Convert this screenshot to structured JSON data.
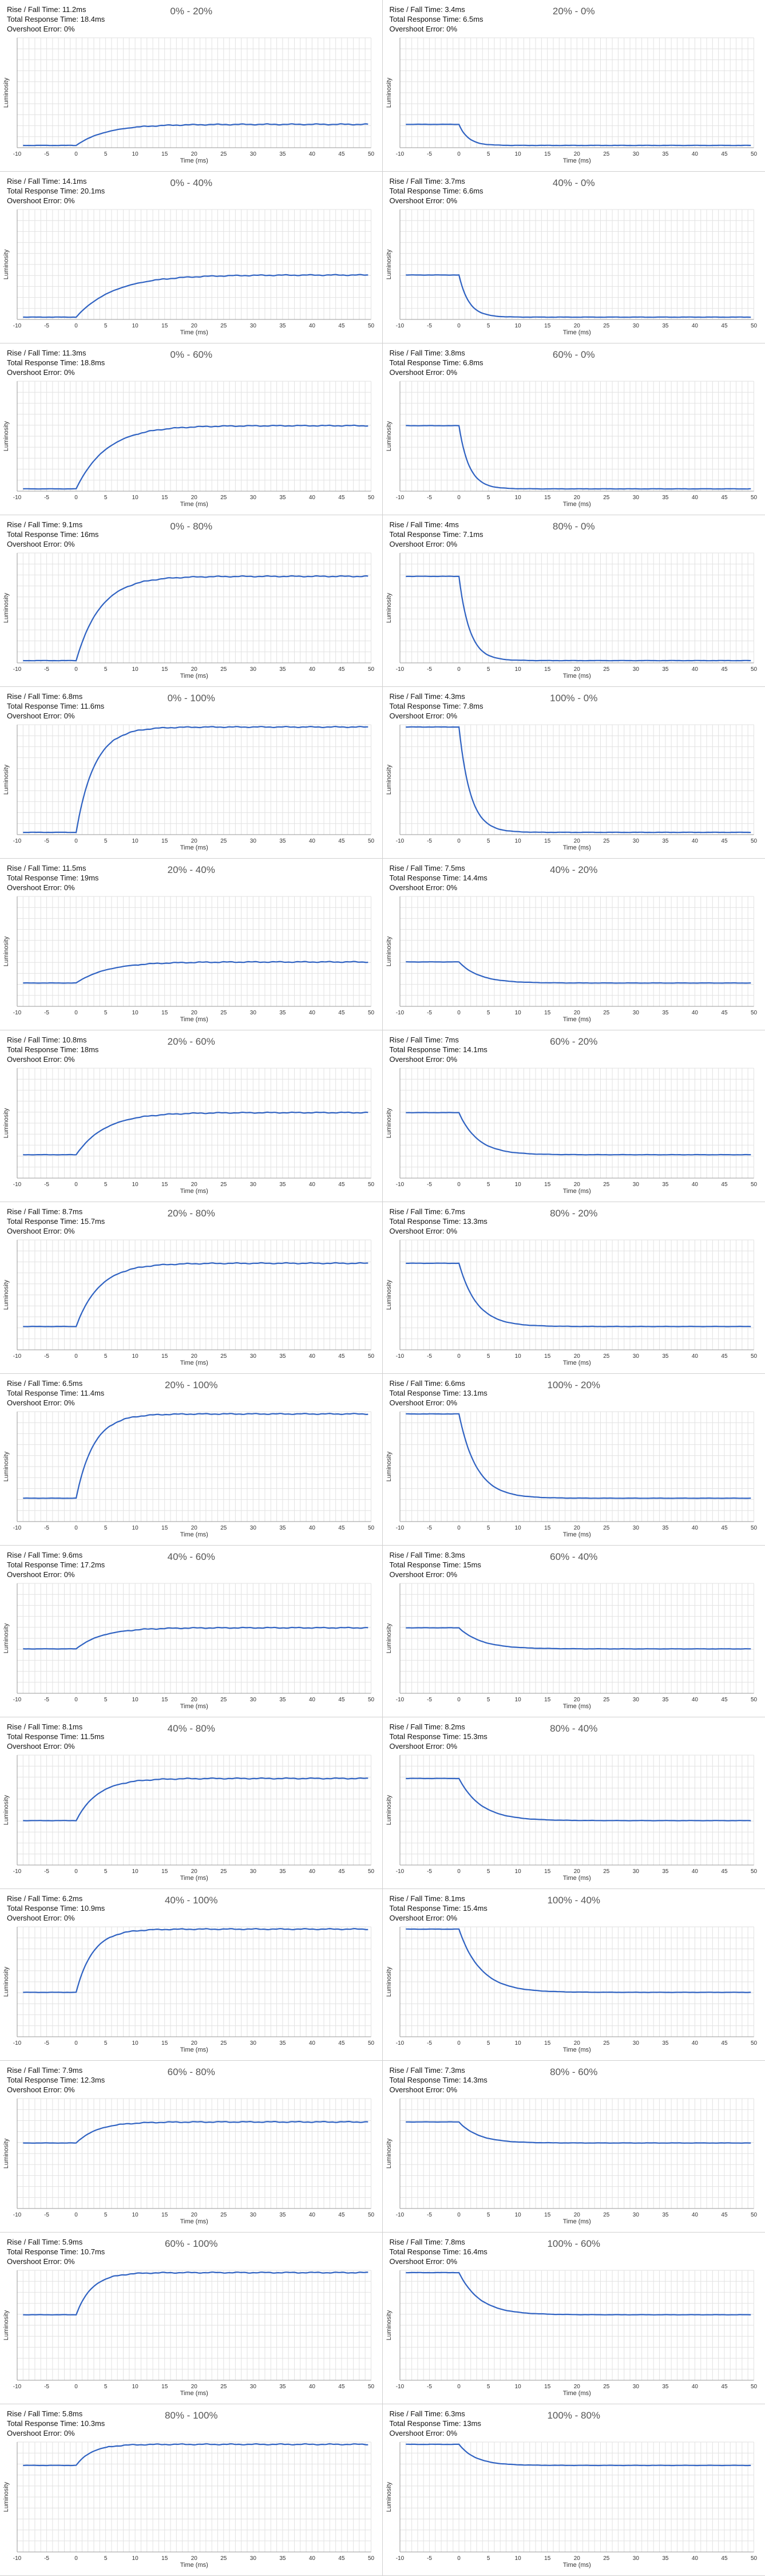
{
  "labels": {
    "rise_fall": "Rise / Fall Time:",
    "total": "Total Response Time:",
    "overshoot": "Overshoot Error:",
    "xlabel": "Time (ms)",
    "ylabel": "Luminosity"
  },
  "colors": {
    "curve": "#2f62c2"
  },
  "chart_data": [
    {
      "type": "line",
      "title": "0% - 20%",
      "rise_fall_time": "11.2ms",
      "total_response_time": "18.4ms",
      "overshoot_error": "0%",
      "direction": "rise",
      "start_level": 0,
      "end_level": 20,
      "xlabel": "Time (ms)",
      "ylabel": "Luminosity",
      "x_ticks": [
        -10,
        -5,
        0,
        5,
        10,
        15,
        20,
        25,
        30,
        35,
        40,
        45,
        50
      ]
    },
    {
      "type": "line",
      "title": "20% - 0%",
      "rise_fall_time": "3.4ms",
      "total_response_time": "6.5ms",
      "overshoot_error": "0%",
      "direction": "fall",
      "start_level": 20,
      "end_level": 0,
      "xlabel": "Time (ms)",
      "ylabel": "Luminosity",
      "x_ticks": [
        -10,
        -5,
        0,
        5,
        10,
        15,
        20,
        25,
        30,
        35,
        40,
        45,
        50
      ]
    },
    {
      "type": "line",
      "title": "0% - 40%",
      "rise_fall_time": "14.1ms",
      "total_response_time": "20.1ms",
      "overshoot_error": "0%",
      "direction": "rise",
      "start_level": 0,
      "end_level": 40,
      "xlabel": "Time (ms)",
      "ylabel": "Luminosity",
      "x_ticks": [
        -10,
        -5,
        0,
        5,
        10,
        15,
        20,
        25,
        30,
        35,
        40,
        45,
        50
      ]
    },
    {
      "type": "line",
      "title": "40% - 0%",
      "rise_fall_time": "3.7ms",
      "total_response_time": "6.6ms",
      "overshoot_error": "0%",
      "direction": "fall",
      "start_level": 40,
      "end_level": 0,
      "xlabel": "Time (ms)",
      "ylabel": "Luminosity",
      "x_ticks": [
        -10,
        -5,
        0,
        5,
        10,
        15,
        20,
        25,
        30,
        35,
        40,
        45,
        50
      ]
    },
    {
      "type": "line",
      "title": "0% - 60%",
      "rise_fall_time": "11.3ms",
      "total_response_time": "18.8ms",
      "overshoot_error": "0%",
      "direction": "rise",
      "start_level": 0,
      "end_level": 60,
      "xlabel": "Time (ms)",
      "ylabel": "Luminosity",
      "x_ticks": [
        -10,
        -5,
        0,
        5,
        10,
        15,
        20,
        25,
        30,
        35,
        40,
        45,
        50
      ]
    },
    {
      "type": "line",
      "title": "60% - 0%",
      "rise_fall_time": "3.8ms",
      "total_response_time": "6.8ms",
      "overshoot_error": "0%",
      "direction": "fall",
      "start_level": 60,
      "end_level": 0,
      "xlabel": "Time (ms)",
      "ylabel": "Luminosity",
      "x_ticks": [
        -10,
        -5,
        0,
        5,
        10,
        15,
        20,
        25,
        30,
        35,
        40,
        45,
        50
      ]
    },
    {
      "type": "line",
      "title": "0% - 80%",
      "rise_fall_time": "9.1ms",
      "total_response_time": "16ms",
      "overshoot_error": "0%",
      "direction": "rise",
      "start_level": 0,
      "end_level": 80,
      "xlabel": "Time (ms)",
      "ylabel": "Luminosity",
      "x_ticks": [
        -10,
        -5,
        0,
        5,
        10,
        15,
        20,
        25,
        30,
        35,
        40,
        45,
        50
      ]
    },
    {
      "type": "line",
      "title": "80% - 0%",
      "rise_fall_time": "4ms",
      "total_response_time": "7.1ms",
      "overshoot_error": "0%",
      "direction": "fall",
      "start_level": 80,
      "end_level": 0,
      "xlabel": "Time (ms)",
      "ylabel": "Luminosity",
      "x_ticks": [
        -10,
        -5,
        0,
        5,
        10,
        15,
        20,
        25,
        30,
        35,
        40,
        45,
        50
      ]
    },
    {
      "type": "line",
      "title": "0% - 100%",
      "rise_fall_time": "6.8ms",
      "total_response_time": "11.6ms",
      "overshoot_error": "0%",
      "direction": "rise",
      "start_level": 0,
      "end_level": 100,
      "xlabel": "Time (ms)",
      "ylabel": "Luminosity",
      "x_ticks": [
        -10,
        -5,
        0,
        5,
        10,
        15,
        20,
        25,
        30,
        35,
        40,
        45,
        50
      ]
    },
    {
      "type": "line",
      "title": "100% - 0%",
      "rise_fall_time": "4.3ms",
      "total_response_time": "7.8ms",
      "overshoot_error": "0%",
      "direction": "fall",
      "start_level": 100,
      "end_level": 0,
      "xlabel": "Time (ms)",
      "ylabel": "Luminosity",
      "x_ticks": [
        -10,
        -5,
        0,
        5,
        10,
        15,
        20,
        25,
        30,
        35,
        40,
        45,
        50
      ]
    },
    {
      "type": "line",
      "title": "20% - 40%",
      "rise_fall_time": "11.5ms",
      "total_response_time": "19ms",
      "overshoot_error": "0%",
      "direction": "rise",
      "start_level": 20,
      "end_level": 40,
      "xlabel": "Time (ms)",
      "ylabel": "Luminosity",
      "x_ticks": [
        -10,
        -5,
        0,
        5,
        10,
        15,
        20,
        25,
        30,
        35,
        40,
        45,
        50
      ]
    },
    {
      "type": "line",
      "title": "40% - 20%",
      "rise_fall_time": "7.5ms",
      "total_response_time": "14.4ms",
      "overshoot_error": "0%",
      "direction": "fall",
      "start_level": 40,
      "end_level": 20,
      "xlabel": "Time (ms)",
      "ylabel": "Luminosity",
      "x_ticks": [
        -10,
        -5,
        0,
        5,
        10,
        15,
        20,
        25,
        30,
        35,
        40,
        45,
        50
      ]
    },
    {
      "type": "line",
      "title": "20% - 60%",
      "rise_fall_time": "10.8ms",
      "total_response_time": "18ms",
      "overshoot_error": "0%",
      "direction": "rise",
      "start_level": 20,
      "end_level": 60,
      "xlabel": "Time (ms)",
      "ylabel": "Luminosity",
      "x_ticks": [
        -10,
        -5,
        0,
        5,
        10,
        15,
        20,
        25,
        30,
        35,
        40,
        45,
        50
      ]
    },
    {
      "type": "line",
      "title": "60% - 20%",
      "rise_fall_time": "7ms",
      "total_response_time": "14.1ms",
      "overshoot_error": "0%",
      "direction": "fall",
      "start_level": 60,
      "end_level": 20,
      "xlabel": "Time (ms)",
      "ylabel": "Luminosity",
      "x_ticks": [
        -10,
        -5,
        0,
        5,
        10,
        15,
        20,
        25,
        30,
        35,
        40,
        45,
        50
      ]
    },
    {
      "type": "line",
      "title": "20% - 80%",
      "rise_fall_time": "8.7ms",
      "total_response_time": "15.7ms",
      "overshoot_error": "0%",
      "direction": "rise",
      "start_level": 20,
      "end_level": 80,
      "xlabel": "Time (ms)",
      "ylabel": "Luminosity",
      "x_ticks": [
        -10,
        -5,
        0,
        5,
        10,
        15,
        20,
        25,
        30,
        35,
        40,
        45,
        50
      ]
    },
    {
      "type": "line",
      "title": "80% - 20%",
      "rise_fall_time": "6.7ms",
      "total_response_time": "13.3ms",
      "overshoot_error": "0%",
      "direction": "fall",
      "start_level": 80,
      "end_level": 20,
      "xlabel": "Time (ms)",
      "ylabel": "Luminosity",
      "x_ticks": [
        -10,
        -5,
        0,
        5,
        10,
        15,
        20,
        25,
        30,
        35,
        40,
        45,
        50
      ]
    },
    {
      "type": "line",
      "title": "20% - 100%",
      "rise_fall_time": "6.5ms",
      "total_response_time": "11.4ms",
      "overshoot_error": "0%",
      "direction": "rise",
      "start_level": 20,
      "end_level": 100,
      "xlabel": "Time (ms)",
      "ylabel": "Luminosity",
      "x_ticks": [
        -10,
        -5,
        0,
        5,
        10,
        15,
        20,
        25,
        30,
        35,
        40,
        45,
        50
      ]
    },
    {
      "type": "line",
      "title": "100% - 20%",
      "rise_fall_time": "6.6ms",
      "total_response_time": "13.1ms",
      "overshoot_error": "0%",
      "direction": "fall",
      "start_level": 100,
      "end_level": 20,
      "xlabel": "Time (ms)",
      "ylabel": "Luminosity",
      "x_ticks": [
        -10,
        -5,
        0,
        5,
        10,
        15,
        20,
        25,
        30,
        35,
        40,
        45,
        50
      ]
    },
    {
      "type": "line",
      "title": "40% - 60%",
      "rise_fall_time": "9.6ms",
      "total_response_time": "17.2ms",
      "overshoot_error": "0%",
      "direction": "rise",
      "start_level": 40,
      "end_level": 60,
      "xlabel": "Time (ms)",
      "ylabel": "Luminosity",
      "x_ticks": [
        -10,
        -5,
        0,
        5,
        10,
        15,
        20,
        25,
        30,
        35,
        40,
        45,
        50
      ]
    },
    {
      "type": "line",
      "title": "60% - 40%",
      "rise_fall_time": "8.3ms",
      "total_response_time": "15ms",
      "overshoot_error": "0%",
      "direction": "fall",
      "start_level": 60,
      "end_level": 40,
      "xlabel": "Time (ms)",
      "ylabel": "Luminosity",
      "x_ticks": [
        -10,
        -5,
        0,
        5,
        10,
        15,
        20,
        25,
        30,
        35,
        40,
        45,
        50
      ]
    },
    {
      "type": "line",
      "title": "40% - 80%",
      "rise_fall_time": "8.1ms",
      "total_response_time": "11.5ms",
      "overshoot_error": "0%",
      "direction": "rise",
      "start_level": 40,
      "end_level": 80,
      "xlabel": "Time (ms)",
      "ylabel": "Luminosity",
      "x_ticks": [
        -10,
        -5,
        0,
        5,
        10,
        15,
        20,
        25,
        30,
        35,
        40,
        45,
        50
      ]
    },
    {
      "type": "line",
      "title": "80% - 40%",
      "rise_fall_time": "8.2ms",
      "total_response_time": "15.3ms",
      "overshoot_error": "0%",
      "direction": "fall",
      "start_level": 80,
      "end_level": 40,
      "xlabel": "Time (ms)",
      "ylabel": "Luminosity",
      "x_ticks": [
        -10,
        -5,
        0,
        5,
        10,
        15,
        20,
        25,
        30,
        35,
        40,
        45,
        50
      ]
    },
    {
      "type": "line",
      "title": "40% - 100%",
      "rise_fall_time": "6.2ms",
      "total_response_time": "10.9ms",
      "overshoot_error": "0%",
      "direction": "rise",
      "start_level": 40,
      "end_level": 100,
      "xlabel": "Time (ms)",
      "ylabel": "Luminosity",
      "x_ticks": [
        -10,
        -5,
        0,
        5,
        10,
        15,
        20,
        25,
        30,
        35,
        40,
        45,
        50
      ]
    },
    {
      "type": "line",
      "title": "100% - 40%",
      "rise_fall_time": "8.1ms",
      "total_response_time": "15.4ms",
      "overshoot_error": "0%",
      "direction": "fall",
      "start_level": 100,
      "end_level": 40,
      "xlabel": "Time (ms)",
      "ylabel": "Luminosity",
      "x_ticks": [
        -10,
        -5,
        0,
        5,
        10,
        15,
        20,
        25,
        30,
        35,
        40,
        45,
        50
      ]
    },
    {
      "type": "line",
      "title": "60% - 80%",
      "rise_fall_time": "7.9ms",
      "total_response_time": "12.3ms",
      "overshoot_error": "0%",
      "direction": "rise",
      "start_level": 60,
      "end_level": 80,
      "xlabel": "Time (ms)",
      "ylabel": "Luminosity",
      "x_ticks": [
        -10,
        -5,
        0,
        5,
        10,
        15,
        20,
        25,
        30,
        35,
        40,
        45,
        50
      ]
    },
    {
      "type": "line",
      "title": "80% - 60%",
      "rise_fall_time": "7.3ms",
      "total_response_time": "14.3ms",
      "overshoot_error": "0%",
      "direction": "fall",
      "start_level": 80,
      "end_level": 60,
      "xlabel": "Time (ms)",
      "ylabel": "Luminosity",
      "x_ticks": [
        -10,
        -5,
        0,
        5,
        10,
        15,
        20,
        25,
        30,
        35,
        40,
        45,
        50
      ]
    },
    {
      "type": "line",
      "title": "60% - 100%",
      "rise_fall_time": "5.9ms",
      "total_response_time": "10.7ms",
      "overshoot_error": "0%",
      "direction": "rise",
      "start_level": 60,
      "end_level": 100,
      "xlabel": "Time (ms)",
      "ylabel": "Luminosity",
      "x_ticks": [
        -10,
        -5,
        0,
        5,
        10,
        15,
        20,
        25,
        30,
        35,
        40,
        45,
        50
      ]
    },
    {
      "type": "line",
      "title": "100% - 60%",
      "rise_fall_time": "7.8ms",
      "total_response_time": "16.4ms",
      "overshoot_error": "0%",
      "direction": "fall",
      "start_level": 100,
      "end_level": 60,
      "xlabel": "Time (ms)",
      "ylabel": "Luminosity",
      "x_ticks": [
        -10,
        -5,
        0,
        5,
        10,
        15,
        20,
        25,
        30,
        35,
        40,
        45,
        50
      ]
    },
    {
      "type": "line",
      "title": "80% - 100%",
      "rise_fall_time": "5.8ms",
      "total_response_time": "10.3ms",
      "overshoot_error": "0%",
      "direction": "rise",
      "start_level": 80,
      "end_level": 100,
      "xlabel": "Time (ms)",
      "ylabel": "Luminosity",
      "x_ticks": [
        -10,
        -5,
        0,
        5,
        10,
        15,
        20,
        25,
        30,
        35,
        40,
        45,
        50
      ]
    },
    {
      "type": "line",
      "title": "100% - 80%",
      "rise_fall_time": "6.3ms",
      "total_response_time": "13ms",
      "overshoot_error": "0%",
      "direction": "fall",
      "start_level": 100,
      "end_level": 80,
      "xlabel": "Time (ms)",
      "ylabel": "Luminosity",
      "x_ticks": [
        -10,
        -5,
        0,
        5,
        10,
        15,
        20,
        25,
        30,
        35,
        40,
        45,
        50
      ]
    }
  ]
}
